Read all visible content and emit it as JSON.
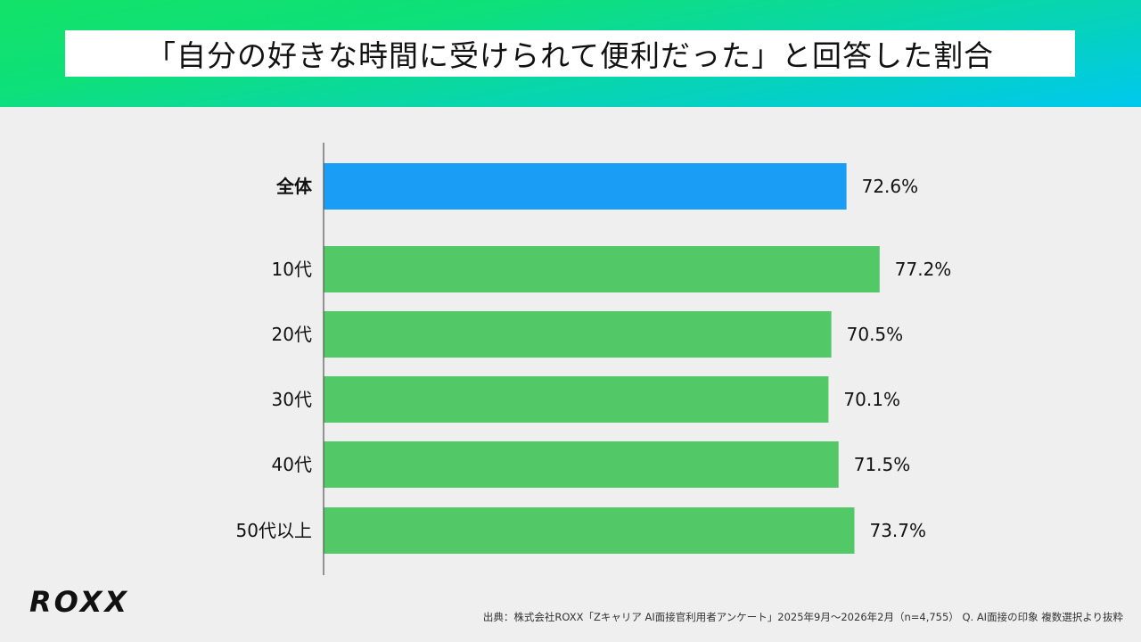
{
  "header": {
    "title": "「自分の好きな時間に受けられて便利だった」と回答した割合"
  },
  "logo": "ROXX",
  "source": "出典：株式会社ROXX「Zキャリア AI面接官利用者アンケート」2025年9月〜2026年2月（n=4,755） Q. AI面接の印象 複数選択より抜粋",
  "colors": {
    "overall": "#1a9ef5",
    "age": "#52c966",
    "axis": "#555555"
  },
  "chart_data": {
    "type": "bar",
    "orientation": "horizontal",
    "title": "「自分の好きな時間に受けられて便利だった」と回答した割合",
    "categories": [
      "全体",
      "10代",
      "20代",
      "30代",
      "40代",
      "50代以上"
    ],
    "values": [
      72.6,
      77.2,
      70.5,
      70.1,
      71.5,
      73.7
    ],
    "value_labels": [
      "72.6%",
      "77.2%",
      "70.5%",
      "70.1%",
      "71.5%",
      "73.7%"
    ],
    "unit": "%",
    "xlim": [
      0,
      100
    ],
    "grid": false,
    "legend": "none"
  }
}
